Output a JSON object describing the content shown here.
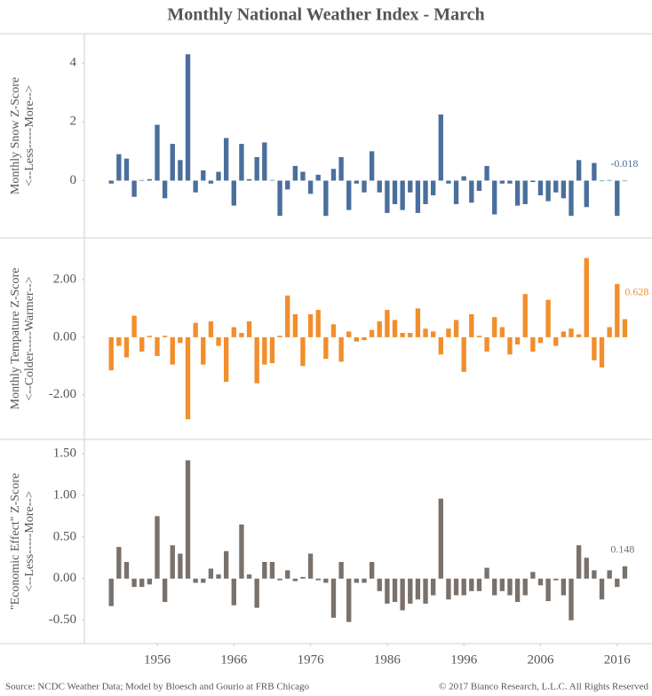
{
  "title": "Monthly National Weather Index - March",
  "source": "Source: NCDC Weather Data; Model by Bloesch and Gourio at FRB Chicago",
  "copyright": "© 2017 Bianco Research, L.L.C. All Rights Reserved",
  "chart_data": [
    {
      "type": "bar",
      "ylabel": [
        "Monthly Snow Z-Score",
        "<--Less-----More-->"
      ],
      "color": "#4a6f9c",
      "ylim": [
        -1.95,
        5
      ],
      "yticks": [
        0,
        2,
        4
      ],
      "values": [
        -0.1,
        0.9,
        0.75,
        -0.55,
        0.02,
        0.05,
        1.9,
        -0.6,
        1.25,
        0.7,
        4.3,
        -0.4,
        0.35,
        -0.1,
        0.3,
        1.45,
        -0.85,
        1.25,
        0.05,
        0.8,
        1.3,
        0.02,
        -1.2,
        -0.3,
        0.5,
        0.3,
        -0.45,
        0.2,
        -1.2,
        0.4,
        0.8,
        -1.0,
        -0.1,
        -0.4,
        1.0,
        -0.4,
        -1.1,
        -0.8,
        -1.0,
        -0.4,
        -1.1,
        -0.8,
        -0.5,
        2.25,
        -0.1,
        -0.8,
        0.15,
        -0.75,
        -0.35,
        0.5,
        -1.15,
        -0.1,
        -0.1,
        -0.85,
        -0.8,
        -0.05,
        -0.5,
        -0.7,
        -0.4,
        -0.6,
        -1.2,
        0.7,
        -0.9,
        0.6,
        -0.02,
        0.02,
        -1.2,
        -0.018
      ]
    },
    {
      "type": "bar",
      "ylabel": [
        "Monthly Tempature Z-Score",
        "<--Colder-----Warmer-->"
      ],
      "color": "#f28e2b",
      "ylim": [
        -3.55,
        3.45
      ],
      "yticks": [
        {
          "value": -2,
          "label": "-2.00"
        },
        {
          "value": 0,
          "label": "0.00"
        },
        {
          "value": 2,
          "label": "2.00"
        }
      ],
      "values": [
        -1.15,
        -0.3,
        -0.7,
        0.75,
        -0.5,
        0.05,
        -0.65,
        0.05,
        -0.95,
        -0.2,
        -2.85,
        0.5,
        -0.95,
        0.55,
        -0.3,
        -1.55,
        0.35,
        0.15,
        0.55,
        -1.6,
        -0.95,
        -0.9,
        0.05,
        1.45,
        0.8,
        -1.0,
        0.8,
        0.95,
        -0.75,
        0.45,
        -0.85,
        0.2,
        -0.15,
        -0.1,
        0.25,
        0.55,
        0.95,
        0.6,
        0.15,
        0.15,
        1.0,
        0.3,
        0.2,
        -0.6,
        0.3,
        0.6,
        -1.2,
        0.8,
        0.05,
        -0.5,
        0.7,
        0.35,
        -0.6,
        -0.25,
        1.5,
        -0.5,
        -0.2,
        1.3,
        -0.3,
        0.2,
        0.3,
        0.1,
        2.75,
        -0.8,
        -1.05,
        0.35,
        1.85,
        0.628
      ]
    },
    {
      "type": "bar",
      "ylabel": [
        "\"Economic Effect\" Z-Score",
        "<--Less-----More-->"
      ],
      "color": "#7a716b",
      "ylim": [
        -0.78,
        1.67
      ],
      "yticks": [
        {
          "value": -0.5,
          "label": "-0.50"
        },
        {
          "value": 0,
          "label": "0.00"
        },
        {
          "value": 0.5,
          "label": "0.50"
        },
        {
          "value": 1,
          "label": "1.00"
        },
        {
          "value": 1.5,
          "label": "1.50"
        }
      ],
      "xlim": [
        1946.5,
        2019.5
      ],
      "xticks": [
        1956,
        1966,
        1976,
        1986,
        1996,
        2006,
        2016
      ],
      "x": [
        1950,
        1951,
        1952,
        1953,
        1954,
        1955,
        1956,
        1957,
        1958,
        1959,
        1960,
        1961,
        1962,
        1963,
        1964,
        1965,
        1966,
        1967,
        1968,
        1969,
        1970,
        1971,
        1972,
        1973,
        1974,
        1975,
        1976,
        1977,
        1978,
        1979,
        1980,
        1981,
        1982,
        1983,
        1984,
        1985,
        1986,
        1987,
        1988,
        1989,
        1990,
        1991,
        1992,
        1993,
        1994,
        1995,
        1996,
        1997,
        1998,
        1999,
        2000,
        2001,
        2002,
        2003,
        2004,
        2005,
        2006,
        2007,
        2008,
        2009,
        2010,
        2011,
        2012,
        2013,
        2014,
        2015,
        2016,
        2017
      ],
      "values": [
        -0.33,
        0.38,
        0.2,
        -0.1,
        -0.1,
        -0.07,
        0.75,
        -0.28,
        0.4,
        0.3,
        1.42,
        -0.05,
        -0.05,
        0.12,
        0.05,
        0.33,
        -0.32,
        0.65,
        0.05,
        -0.35,
        0.2,
        0.2,
        -0.02,
        0.1,
        -0.03,
        0.02,
        0.3,
        -0.02,
        -0.05,
        -0.47,
        0.2,
        -0.52,
        -0.05,
        -0.05,
        0.2,
        -0.15,
        -0.3,
        -0.28,
        -0.38,
        -0.3,
        -0.25,
        -0.3,
        -0.2,
        0.96,
        -0.25,
        -0.2,
        -0.2,
        -0.15,
        -0.15,
        0.13,
        -0.2,
        -0.15,
        -0.2,
        -0.28,
        -0.2,
        0.08,
        -0.08,
        -0.27,
        -0.02,
        -0.2,
        -0.5,
        0.4,
        0.25,
        0.1,
        -0.25,
        0.1,
        -0.1,
        0.148
      ]
    }
  ]
}
